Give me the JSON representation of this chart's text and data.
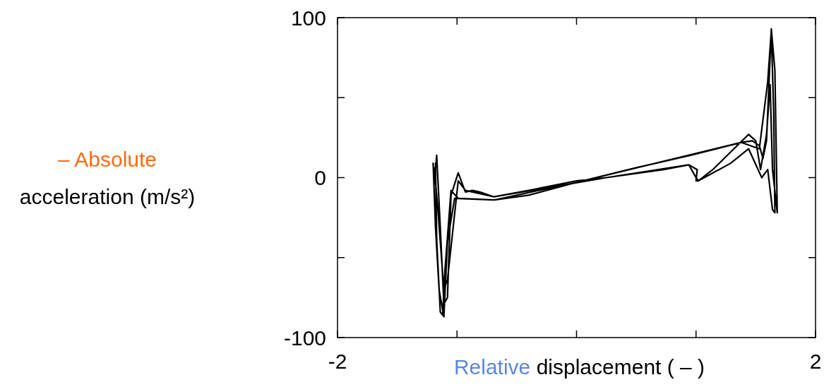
{
  "chart_data": {
    "type": "line",
    "xlabel": "Relative displacement ( – )",
    "ylabel": "– Absolute acceleration (m/s²)",
    "xlim": [
      -2,
      2
    ],
    "ylim": [
      -100,
      100
    ],
    "xticks": [
      -2,
      {
        "value": -1,
        "label": null
      },
      {
        "value": 0,
        "label": null
      },
      {
        "value": 1,
        "label": null
      },
      2
    ],
    "yticks": [
      -100,
      {
        "value": -50,
        "label": null
      },
      0,
      {
        "value": 50,
        "label": null
      },
      100
    ],
    "grid": false,
    "line_style": "solid",
    "series": [
      {
        "color": "#000000",
        "x": [
          -1.18,
          -1.17,
          -1.14,
          -1.12,
          -1.1,
          -1.05,
          -0.99,
          -0.69,
          -0.4,
          0,
          0.49,
          0.96,
          1.38,
          1.47,
          1.53,
          1.56,
          1.59,
          1.63,
          1.66,
          1.68,
          1.64,
          1.62,
          1.59,
          1.54,
          1.5,
          1.44,
          1.29,
          1.14,
          1.02,
          1,
          1.01,
          0.94,
          0.73,
          0.25,
          0,
          -0.4,
          -0.69,
          -0.81,
          -0.87,
          -0.93,
          -0.99,
          -1.05,
          -1.08,
          -1.11,
          -1.14,
          -1.17,
          -1.19,
          -1.2,
          -1.18,
          -1.15,
          -1.11,
          -1.08,
          -1.02,
          -0.69,
          0,
          1.38,
          1.53,
          1.6,
          1.63,
          1.65,
          1.66,
          1.64,
          1.6,
          1.55,
          1.44,
          1.29,
          1.02,
          1.0,
          0.94,
          0.25,
          -0.69,
          -0.93,
          -0.99,
          -1.08,
          -1.11,
          -1.16,
          -1.19
        ],
        "values": [
          9,
          -39,
          -84,
          -86,
          -57,
          -8,
          -13,
          -14,
          -11,
          -3,
          6,
          14,
          22,
          23,
          20,
          12,
          23,
          93,
          67,
          -22,
          5,
          58,
          27,
          5,
          23,
          27,
          16,
          5,
          -2,
          -2,
          5,
          8,
          5,
          0,
          -2,
          -8,
          -12,
          -9,
          -8,
          -9,
          3,
          -11,
          -75,
          -79,
          -31,
          14,
          -4,
          9,
          -31,
          -70,
          -87,
          -40,
          -13,
          -14,
          -3,
          22,
          18,
          60,
          92,
          40,
          -22,
          -20,
          5,
          0,
          18,
          9,
          -2,
          0,
          8,
          0,
          -12,
          -8,
          -2,
          -64,
          -70,
          -20,
          6
        ]
      }
    ]
  }
}
